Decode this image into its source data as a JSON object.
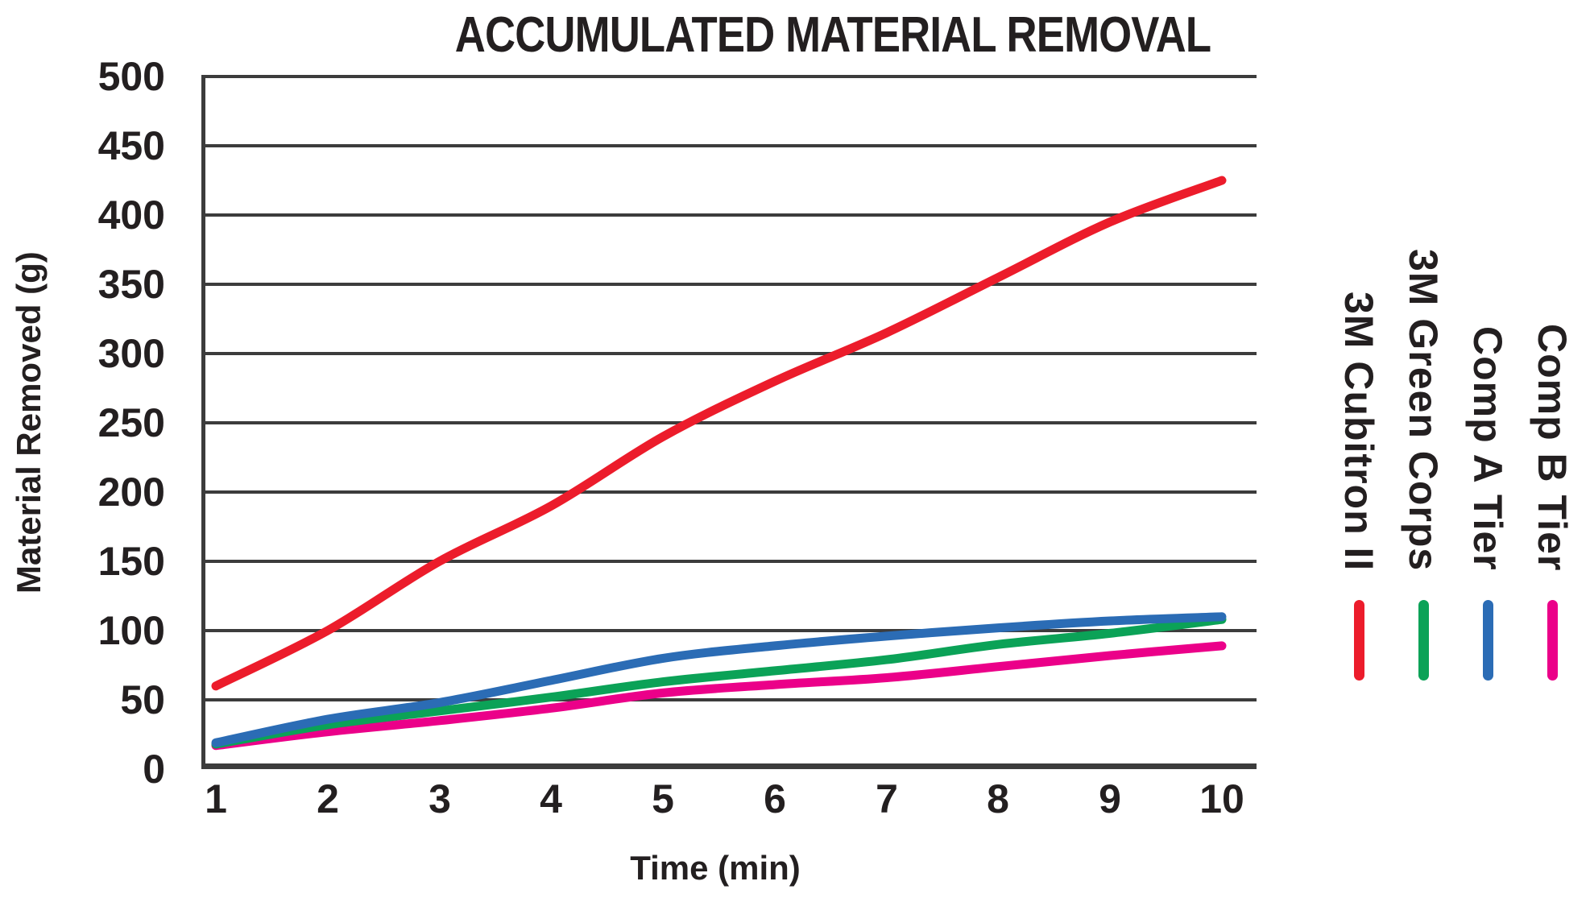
{
  "page": {
    "background": "#ffffff"
  },
  "chart": {
    "title": "ACCUMULATED MATERIAL REMOVAL",
    "x_axis_title": "Time (min)",
    "y_axis_title": "Material Removed (g)"
  },
  "chart_data": {
    "type": "line",
    "title": "ACCUMULATED MATERIAL REMOVAL",
    "xlabel": "Time (min)",
    "ylabel": "Material Removed (g)",
    "x": [
      1,
      2,
      3,
      4,
      5,
      6,
      7,
      8,
      9,
      10
    ],
    "x_tick_labels": [
      "1",
      "2",
      "3",
      "4",
      "5",
      "6",
      "7",
      "8",
      "9",
      "10"
    ],
    "y_ticks": [
      0,
      50,
      100,
      150,
      200,
      250,
      300,
      350,
      400,
      450,
      500
    ],
    "ylim": [
      0,
      500
    ],
    "xlim": [
      1,
      10
    ],
    "grid": "horizontal-only",
    "legend_position": "right-vertical-rotated",
    "axis_color": "#3c3c3c",
    "text_color": "#231f20",
    "series": [
      {
        "name": "3M Cubitron II",
        "color": "#ec1c2b",
        "values": [
          60,
          100,
          150,
          190,
          240,
          280,
          315,
          355,
          395,
          425
        ]
      },
      {
        "name": "3M Green Corps",
        "color": "#0ba257",
        "values": [
          18,
          32,
          42,
          52,
          63,
          71,
          79,
          90,
          98,
          108
        ]
      },
      {
        "name": "Comp A Tier",
        "color": "#2b6cb5",
        "values": [
          19,
          36,
          48,
          64,
          80,
          89,
          96,
          102,
          107,
          110
        ]
      },
      {
        "name": "Comp B Tier",
        "color": "#eb0089",
        "values": [
          17,
          27,
          35,
          44,
          55,
          61,
          66,
          74,
          82,
          89
        ]
      }
    ]
  }
}
